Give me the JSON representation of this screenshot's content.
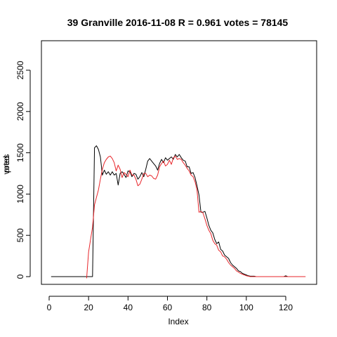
{
  "chart_data": {
    "type": "line",
    "title": "39 Granville 2016-11-08 R = 0.961 votes = 78145",
    "xlabel": "Index",
    "ylabel_overlap": [
      "votes",
      "pred"
    ],
    "xlim": [
      0,
      130
    ],
    "ylim": [
      0,
      2800
    ],
    "xticks": [
      0,
      20,
      40,
      60,
      80,
      100,
      120
    ],
    "yticks": [
      0,
      500,
      1000,
      1500,
      2000,
      2500
    ],
    "grid": false,
    "series": [
      {
        "color": "#000000",
        "x": [
          1,
          2,
          3,
          4,
          5,
          6,
          7,
          8,
          9,
          10,
          11,
          12,
          13,
          14,
          15,
          16,
          17,
          18,
          19,
          20,
          21,
          22,
          23,
          24,
          25,
          26,
          27,
          28,
          29,
          30,
          31,
          32,
          33,
          34,
          35,
          36,
          37,
          38,
          39,
          40,
          41,
          42,
          43,
          44,
          45,
          46,
          47,
          48,
          49,
          50,
          51,
          52,
          53,
          54,
          55,
          56,
          57,
          58,
          59,
          60,
          61,
          62,
          63,
          64,
          65,
          66,
          67,
          68,
          69,
          70,
          71,
          72,
          73,
          74,
          75,
          76,
          77,
          78,
          79,
          80,
          81,
          82,
          83,
          84,
          85,
          86,
          87,
          88,
          89,
          90,
          91,
          92,
          93,
          94,
          95,
          96,
          97,
          98,
          99,
          100,
          101,
          102,
          103,
          104,
          105,
          106,
          107,
          108,
          109,
          110,
          111,
          112,
          113,
          114,
          115,
          116,
          117,
          118,
          119,
          120,
          121,
          122,
          123,
          124,
          125,
          126,
          127,
          128,
          129,
          130
        ],
        "values": [
          0,
          0,
          0,
          0,
          0,
          0,
          0,
          0,
          0,
          0,
          0,
          0,
          0,
          0,
          0,
          0,
          0,
          0,
          0,
          0,
          0,
          0,
          1560,
          1585,
          1540,
          1450,
          1230,
          1290,
          1240,
          1270,
          1230,
          1270,
          1230,
          1250,
          1110,
          1250,
          1270,
          1240,
          1200,
          1280,
          1270,
          1210,
          1250,
          1240,
          1180,
          1210,
          1260,
          1210,
          1300,
          1400,
          1430,
          1400,
          1370,
          1340,
          1290,
          1370,
          1420,
          1380,
          1440,
          1410,
          1430,
          1450,
          1420,
          1480,
          1450,
          1480,
          1440,
          1410,
          1400,
          1330,
          1330,
          1250,
          1260,
          1200,
          1100,
          990,
          780,
          780,
          790,
          710,
          620,
          560,
          530,
          450,
          400,
          420,
          330,
          310,
          260,
          240,
          220,
          170,
          140,
          120,
          100,
          70,
          60,
          40,
          30,
          20,
          10,
          5,
          5,
          5,
          0,
          0,
          0,
          0,
          0,
          0,
          0,
          0,
          0,
          0,
          0,
          0,
          0,
          0,
          0,
          10,
          0,
          0,
          0,
          0,
          0,
          0,
          0,
          0,
          0,
          0
        ]
      },
      {
        "color": "#e8262b",
        "x": [
          19,
          20,
          21,
          22,
          23,
          24,
          25,
          26,
          27,
          28,
          29,
          30,
          31,
          32,
          33,
          34,
          35,
          36,
          37,
          38,
          39,
          40,
          41,
          42,
          43,
          44,
          45,
          46,
          47,
          48,
          49,
          50,
          51,
          52,
          53,
          54,
          55,
          56,
          57,
          58,
          59,
          60,
          61,
          62,
          63,
          64,
          65,
          66,
          67,
          68,
          69,
          70,
          71,
          72,
          73,
          74,
          75,
          76,
          77,
          78,
          79,
          80,
          81,
          82,
          83,
          84,
          85,
          86,
          87,
          88,
          89,
          90,
          91,
          92,
          93,
          94,
          95,
          96,
          97,
          98,
          99,
          100,
          101,
          102,
          103,
          104,
          105,
          106,
          107,
          108,
          109,
          110,
          111,
          112,
          113,
          114,
          115,
          116,
          117,
          118,
          119,
          120,
          121,
          122,
          123,
          124,
          125,
          126,
          127,
          128,
          129,
          130
        ],
        "values": [
          -20,
          300,
          450,
          600,
          870,
          960,
          1050,
          1180,
          1300,
          1380,
          1420,
          1450,
          1460,
          1430,
          1380,
          1280,
          1350,
          1300,
          1200,
          1260,
          1240,
          1210,
          1290,
          1230,
          1230,
          1180,
          1100,
          1120,
          1180,
          1250,
          1250,
          1210,
          1230,
          1220,
          1190,
          1180,
          1230,
          1330,
          1370,
          1400,
          1340,
          1360,
          1410,
          1360,
          1440,
          1460,
          1420,
          1430,
          1420,
          1380,
          1350,
          1310,
          1280,
          1230,
          1210,
          1150,
          1050,
          780,
          790,
          770,
          700,
          620,
          560,
          520,
          440,
          400,
          380,
          320,
          300,
          250,
          240,
          210,
          170,
          140,
          120,
          100,
          70,
          55,
          40,
          30,
          20,
          10,
          5,
          0,
          0,
          0,
          0,
          0,
          0,
          0,
          0,
          0,
          0,
          0,
          0,
          0,
          0,
          0,
          0,
          0,
          0,
          0,
          0,
          0,
          0,
          0,
          0,
          0,
          0,
          0,
          0,
          0
        ]
      }
    ]
  }
}
